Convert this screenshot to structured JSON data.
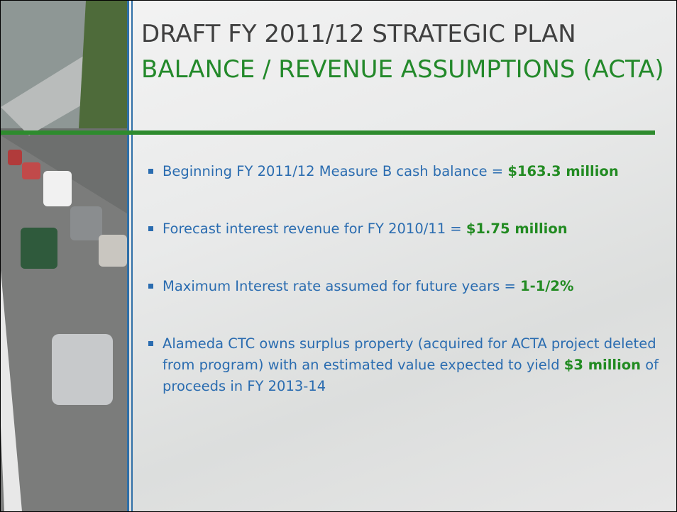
{
  "title": {
    "line1": "DRAFT FY 2011/12 STRATEGIC PLAN",
    "line2": "BALANCE / REVENUE ASSUMPTIONS (ACTA)"
  },
  "bullets": [
    {
      "text": "Beginning FY 2011/12 Measure B cash balance = ",
      "highlight": "$163.3 million"
    },
    {
      "text": "Forecast interest revenue for FY 2010/11 = ",
      "highlight": "$1.75 million"
    },
    {
      "text": "Maximum Interest rate assumed for future years = ",
      "highlight": "1-1/2%"
    },
    {
      "text": "Alameda CTC owns surplus property (acquired for ACTA project deleted from program) with an estimated value expected to yield ",
      "highlight": "$3 million",
      "after": " of proceeds in FY 2013-14"
    }
  ]
}
